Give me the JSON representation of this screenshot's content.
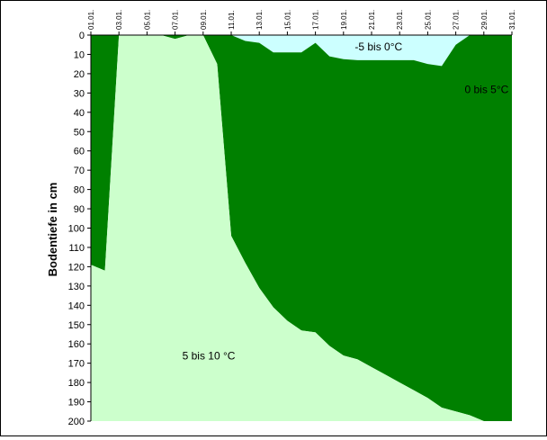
{
  "chart_data": {
    "type": "area",
    "ylabel": "Bodentiefe in cm",
    "ylim": [
      0,
      200
    ],
    "y_inverted": true,
    "y_ticks": [
      0,
      10,
      20,
      30,
      40,
      50,
      60,
      70,
      80,
      90,
      100,
      110,
      120,
      130,
      140,
      150,
      160,
      170,
      180,
      190,
      200
    ],
    "x_ticks": [
      "01.01.",
      "03.01.",
      "05.01.",
      "07.01.",
      "09.01.",
      "11.01.",
      "13.01.",
      "15.01.",
      "17.01.",
      "19.01.",
      "21.01.",
      "23.01.",
      "25.01.",
      "27.01.",
      "29.01.",
      "31.01."
    ],
    "x_days": [
      1,
      2,
      3,
      4,
      5,
      6,
      7,
      8,
      9,
      10,
      11,
      12,
      13,
      14,
      15,
      16,
      17,
      18,
      19,
      20,
      21,
      22,
      23,
      24,
      25,
      26,
      27,
      28,
      29,
      30,
      31
    ],
    "grid": false,
    "series": [
      {
        "name": "-5 bis 0°C",
        "color": "#ccffff",
        "label_position": {
          "day": 21.5,
          "depth": 8
        },
        "depth_to": [
          0,
          0,
          0,
          0,
          0,
          0,
          0,
          0,
          0,
          0,
          0,
          3,
          4,
          9,
          9,
          9,
          4,
          11,
          12.5,
          13,
          13,
          13,
          13,
          13,
          15,
          16,
          5,
          0,
          0,
          0,
          0
        ]
      },
      {
        "name": "0 bis 5°C",
        "color": "#008000",
        "label_position": {
          "day": 29.2,
          "depth": 30
        },
        "depth_to": [
          119,
          122,
          0,
          0,
          0,
          0,
          2,
          0,
          0,
          15,
          104,
          118,
          131,
          141,
          148,
          153,
          154,
          161,
          166,
          168,
          172,
          176,
          180,
          184,
          188,
          193,
          195,
          197,
          200,
          200,
          200
        ]
      },
      {
        "name": "5 bis 10 °C",
        "color": "#ccffcc",
        "label_position": {
          "day": 9.4,
          "depth": 168
        },
        "depth_to": [
          200,
          200,
          200,
          200,
          200,
          200,
          200,
          200,
          200,
          200,
          200,
          200,
          200,
          200,
          200,
          200,
          200,
          200,
          200,
          200,
          200,
          200,
          200,
          200,
          200,
          200,
          200,
          200,
          200,
          200,
          200
        ]
      }
    ]
  }
}
